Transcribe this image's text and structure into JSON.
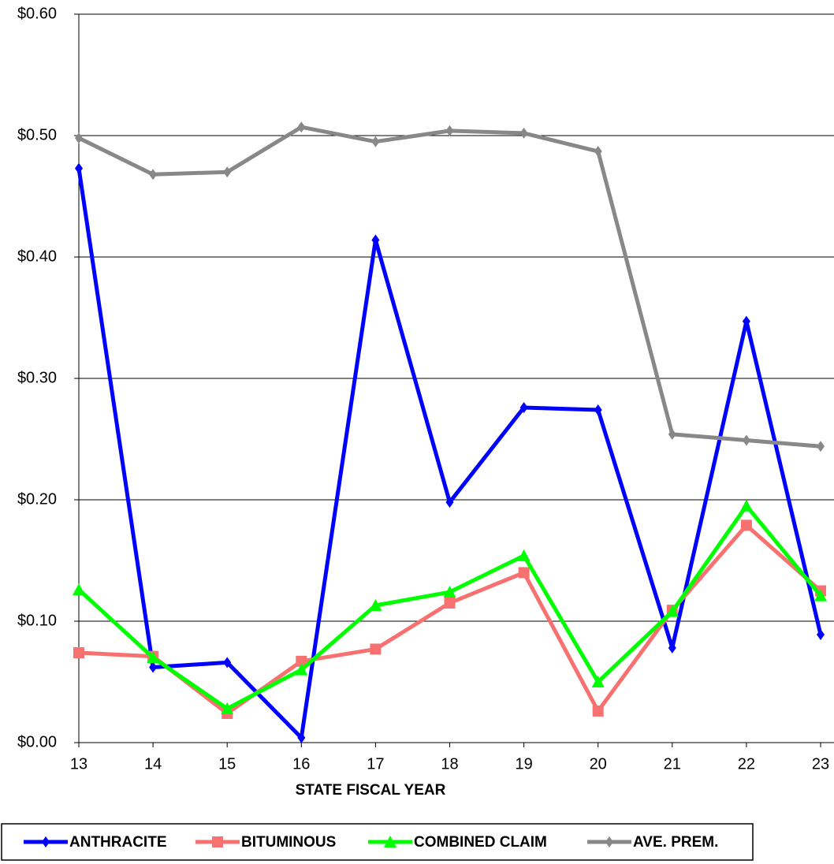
{
  "chart_data": {
    "type": "line",
    "x_label": "STATE FISCAL YEAR",
    "x": [
      13,
      14,
      15,
      16,
      17,
      18,
      19,
      20,
      21,
      22,
      23
    ],
    "xlim": [
      13,
      23
    ],
    "xticks": [
      13,
      14,
      15,
      16,
      17,
      18,
      19,
      20,
      21,
      22,
      23
    ],
    "ylim": [
      0,
      0.6
    ],
    "yticks": [
      {
        "value": 0,
        "label": "$0.00"
      },
      {
        "value": 0.1,
        "label": "$0.10"
      },
      {
        "value": 0.2,
        "label": "$0.20"
      },
      {
        "value": 0.3,
        "label": "$0.30"
      },
      {
        "value": 0.4,
        "label": "$0.40"
      },
      {
        "value": 0.5,
        "label": "$0.50"
      },
      {
        "value": 0.6,
        "label": "$0.60"
      }
    ],
    "grid": true,
    "legend": "bottom",
    "series": [
      {
        "name": "ANTHRACITE",
        "color": "#0000ff",
        "marker": "diamond",
        "values": [
          0.473,
          0.062,
          0.066,
          0.004,
          0.414,
          0.198,
          0.276,
          0.274,
          0.078,
          0.347,
          0.089
        ]
      },
      {
        "name": "BITUMINOUS",
        "color": "#f87171",
        "marker": "square",
        "values": [
          0.074,
          0.071,
          0.024,
          0.067,
          0.077,
          0.115,
          0.14,
          0.026,
          0.109,
          0.179,
          0.125
        ]
      },
      {
        "name": "COMBINED CLAIM",
        "color": "#00ff00",
        "marker": "triangle",
        "values": [
          0.126,
          0.07,
          0.028,
          0.06,
          0.113,
          0.124,
          0.154,
          0.05,
          0.108,
          0.195,
          0.121
        ]
      },
      {
        "name": "AVE. PREM.",
        "color": "#888888",
        "marker": "diamond",
        "values": [
          0.498,
          0.468,
          0.47,
          0.507,
          0.495,
          0.504,
          0.502,
          0.487,
          0.254,
          0.249,
          0.244
        ]
      }
    ]
  }
}
